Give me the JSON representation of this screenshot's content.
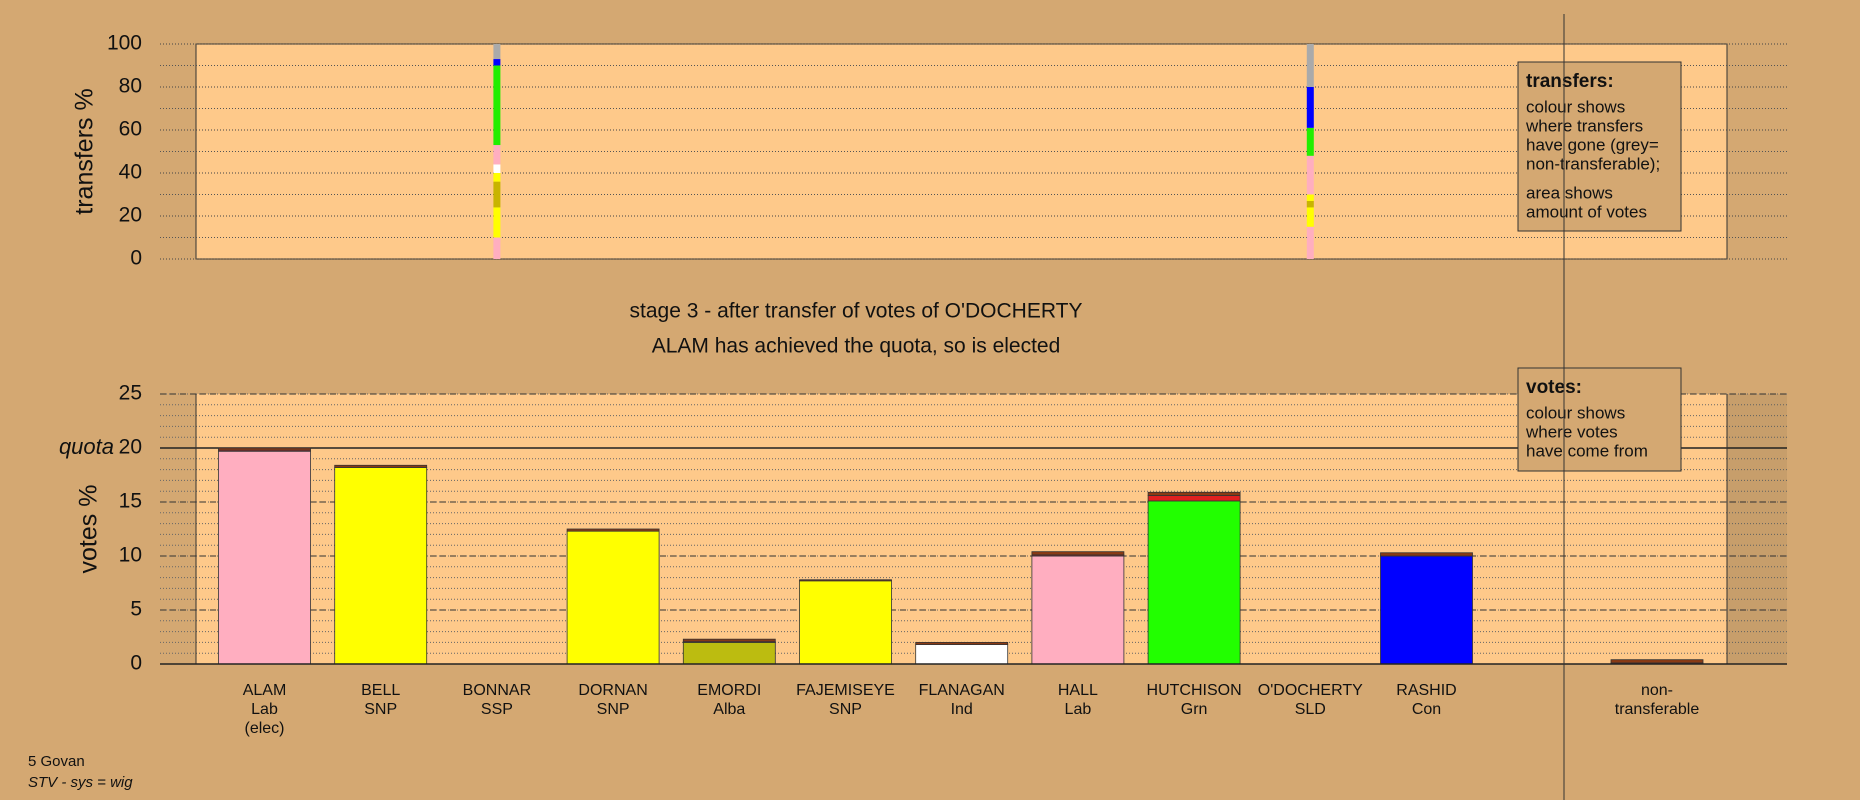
{
  "chart_data": [
    {
      "type": "stacked_column",
      "ylabel": "transfers %",
      "ylim": [
        0,
        100
      ],
      "yticks": [
        0,
        20,
        40,
        60,
        80,
        100
      ],
      "grid": true,
      "stacks": [
        null,
        null,
        [
          {
            "color": "#ffaec0",
            "value": 10
          },
          {
            "color": "#ffff00",
            "value": 14
          },
          {
            "color": "#c8b400",
            "value": 12
          },
          {
            "color": "#ffff00",
            "value": 4
          },
          {
            "color": "#ffffff",
            "value": 4
          },
          {
            "color": "#ffaec0",
            "value": 9
          },
          {
            "color": "#22ee00",
            "value": 37
          },
          {
            "color": "#0000ff",
            "value": 3
          },
          {
            "color": "#aaaaaa",
            "value": 7
          }
        ],
        null,
        null,
        null,
        null,
        null,
        null,
        [
          {
            "color": "#ffaec0",
            "value": 15
          },
          {
            "color": "#ffff00",
            "value": 9
          },
          {
            "color": "#c8b400",
            "value": 3
          },
          {
            "color": "#ffff00",
            "value": 3
          },
          {
            "color": "#ffaec0",
            "value": 18
          },
          {
            "color": "#22ee00",
            "value": 13
          },
          {
            "color": "#0000ff",
            "value": 19
          },
          {
            "color": "#aaaaaa",
            "value": 20
          }
        ],
        null,
        null
      ],
      "legend_box": {
        "title": "transfers:",
        "lines": [
          "colour shows",
          "where transfers",
          "have gone (grey=",
          "non-transferable);",
          "area shows",
          "amount of votes"
        ]
      }
    },
    {
      "type": "stacked_bar",
      "title": "stage 3 - after transfer of votes of O'DOCHERTY",
      "subtitle": "ALAM has achieved the quota, so is elected",
      "ylabel": "votes %",
      "ylim": [
        0,
        25
      ],
      "yticks": [
        0,
        5,
        10,
        15,
        20,
        25
      ],
      "quota": {
        "value": 20,
        "label": "quota"
      },
      "grid": true,
      "categories": [
        [
          "ALAM",
          "Lab",
          "(elec)"
        ],
        [
          "BELL",
          "SNP"
        ],
        [
          "BONNAR",
          "SSP"
        ],
        [
          "DORNAN",
          "SNP"
        ],
        [
          "EMORDI",
          "Alba"
        ],
        [
          "FAJEMISEYE",
          "SNP"
        ],
        [
          "FLANAGAN",
          "Ind"
        ],
        [
          "HALL",
          "Lab"
        ],
        [
          "HUTCHISON",
          "Grn"
        ],
        [
          "O'DOCHERTY",
          "SLD"
        ],
        [
          "RASHID",
          "Con"
        ],
        [
          "non-",
          "transferable"
        ]
      ],
      "series": [
        {
          "colors": [
            "#ffaec0",
            "#ffff00",
            "#ffff00",
            "#ffff00",
            "#bcbc10",
            "#ffff00",
            "#ffffff",
            "#ffaec0",
            "#22ff00",
            "#ffffff",
            "#0000ff",
            "#aaaaaa"
          ],
          "values": [
            19.7,
            18.2,
            0,
            12.3,
            2.0,
            7.7,
            1.8,
            10.0,
            15.1,
            0,
            10.0,
            0
          ]
        },
        {
          "color": "#e02020",
          "values": [
            0.1,
            0,
            0,
            0,
            0.1,
            0,
            0,
            0.1,
            0.5,
            0,
            0,
            0.1
          ]
        },
        {
          "color": "#8a3a14",
          "values": [
            0.2,
            0.2,
            0,
            0.2,
            0.2,
            0.1,
            0.2,
            0.3,
            0.3,
            0,
            0.3,
            0.3
          ]
        }
      ],
      "legend_box": {
        "title": "votes:",
        "lines": [
          "colour shows",
          "where votes",
          "have come from"
        ]
      }
    },
    {
      "type": "footer",
      "lines": [
        "5 Govan",
        "STV - sys = wig"
      ]
    }
  ]
}
